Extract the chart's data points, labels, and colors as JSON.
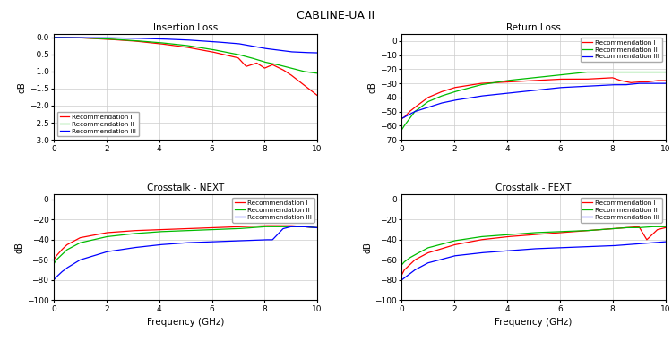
{
  "title": "CABLINE-UA II",
  "freq_max": 10,
  "legend_labels": [
    "Recommendation I",
    "Recommendation II",
    "Recommendation III"
  ],
  "colors": [
    "#ff0000",
    "#00bb00",
    "#0000ff"
  ],
  "subplot_titles": [
    "Insertion Loss",
    "Return Loss",
    "Crosstalk - NEXT",
    "Crosstalk - FEXT"
  ],
  "xlabel": "Frequency (GHz)",
  "ylabel": "dB",
  "insertion_loss": {
    "ylim": [
      -3.0,
      0.1
    ],
    "yticks": [
      0.0,
      -0.5,
      -1.0,
      -1.5,
      -2.0,
      -2.5,
      -3.0
    ],
    "legend_loc": "lower left",
    "rec1": {
      "x": [
        0,
        0.5,
        1,
        2,
        3,
        4,
        5,
        6,
        7,
        7.3,
        7.7,
        8.0,
        8.3,
        8.7,
        9.0,
        9.5,
        10
      ],
      "y": [
        0,
        -0.005,
        -0.01,
        -0.05,
        -0.1,
        -0.18,
        -0.28,
        -0.42,
        -0.6,
        -0.85,
        -0.75,
        -0.9,
        -0.8,
        -0.95,
        -1.1,
        -1.4,
        -1.7
      ]
    },
    "rec2": {
      "x": [
        0,
        0.5,
        1,
        2,
        3,
        4,
        5,
        6,
        7,
        7.5,
        8,
        8.5,
        9,
        9.5,
        10
      ],
      "y": [
        0,
        -0.005,
        -0.01,
        -0.04,
        -0.09,
        -0.15,
        -0.23,
        -0.35,
        -0.5,
        -0.6,
        -0.72,
        -0.8,
        -0.9,
        -1.0,
        -1.05
      ]
    },
    "rec3": {
      "x": [
        0,
        0.5,
        1,
        2,
        3,
        4,
        5,
        6,
        7,
        7.5,
        8,
        8.5,
        9,
        9.5,
        10
      ],
      "y": [
        0,
        -0.002,
        -0.005,
        -0.01,
        -0.02,
        -0.04,
        -0.07,
        -0.12,
        -0.18,
        -0.25,
        -0.32,
        -0.37,
        -0.42,
        -0.44,
        -0.45
      ]
    }
  },
  "return_loss": {
    "ylim": [
      -70,
      5
    ],
    "yticks": [
      0,
      -10,
      -20,
      -30,
      -40,
      -50,
      -60,
      -70
    ],
    "legend_loc": "upper right",
    "rec1": {
      "x": [
        0,
        0.1,
        0.3,
        0.5,
        1,
        1.5,
        2,
        3,
        4,
        5,
        6,
        7,
        8,
        8.3,
        8.7,
        9.0,
        9.3,
        9.7,
        10
      ],
      "y": [
        -55,
        -54,
        -50,
        -47,
        -40,
        -36,
        -33,
        -30,
        -29,
        -28,
        -27,
        -27,
        -26,
        -28,
        -29.5,
        -29,
        -29,
        -28,
        -28
      ]
    },
    "rec2": {
      "x": [
        0,
        0.1,
        0.3,
        0.5,
        1,
        1.5,
        2,
        3,
        4,
        5,
        6,
        7,
        8,
        8.5,
        9,
        9.5,
        10
      ],
      "y": [
        -63,
        -60,
        -55,
        -50,
        -43,
        -39,
        -36,
        -31,
        -28,
        -26,
        -24,
        -22,
        -22,
        -22,
        -22,
        -22,
        -22
      ]
    },
    "rec3": {
      "x": [
        0,
        0.1,
        0.3,
        0.5,
        1,
        1.5,
        2,
        3,
        4,
        5,
        6,
        7,
        8,
        8.5,
        9,
        9.5,
        10
      ],
      "y": [
        -55,
        -54,
        -52,
        -50,
        -47,
        -44,
        -42,
        -39,
        -37,
        -35,
        -33,
        -32,
        -31,
        -31,
        -30,
        -30,
        -30
      ]
    }
  },
  "next": {
    "ylim": [
      -100,
      5
    ],
    "yticks": [
      0,
      -20,
      -40,
      -60,
      -80,
      -100
    ],
    "legend_loc": "upper right",
    "rec1": {
      "x": [
        0,
        0.1,
        0.3,
        0.5,
        1,
        2,
        3,
        4,
        5,
        6,
        7,
        8,
        8.5,
        9,
        9.5,
        10
      ],
      "y": [
        -60,
        -56,
        -50,
        -45,
        -38,
        -33,
        -31,
        -30,
        -29,
        -28,
        -27,
        -26,
        -26,
        -26,
        -27,
        -28
      ]
    },
    "rec2": {
      "x": [
        0,
        0.1,
        0.3,
        0.5,
        1,
        2,
        3,
        4,
        5,
        6,
        7,
        8,
        8.5,
        9,
        9.5,
        10
      ],
      "y": [
        -64,
        -60,
        -55,
        -50,
        -43,
        -37,
        -34,
        -32,
        -31,
        -30,
        -29,
        -27,
        -27,
        -27,
        -27,
        -28
      ]
    },
    "rec3": {
      "x": [
        0,
        0.1,
        0.3,
        0.5,
        1,
        2,
        3,
        4,
        5,
        6,
        7,
        8,
        8.3,
        8.7,
        9.0,
        9.5,
        10
      ],
      "y": [
        -80,
        -77,
        -72,
        -68,
        -60,
        -52,
        -48,
        -45,
        -43,
        -42,
        -41,
        -40,
        -40,
        -29,
        -27,
        -27,
        -28
      ]
    }
  },
  "fext": {
    "ylim": [
      -100,
      5
    ],
    "yticks": [
      0,
      -20,
      -40,
      -60,
      -80,
      -100
    ],
    "legend_loc": "upper right",
    "rec1": {
      "x": [
        0,
        0.1,
        0.3,
        0.5,
        1,
        2,
        3,
        4,
        5,
        6,
        7,
        8,
        8.5,
        9.0,
        9.3,
        9.7,
        10
      ],
      "y": [
        -75,
        -70,
        -65,
        -60,
        -53,
        -45,
        -40,
        -37,
        -35,
        -33,
        -31,
        -29,
        -28,
        -27,
        -40,
        -30,
        -28
      ]
    },
    "rec2": {
      "x": [
        0,
        0.1,
        0.3,
        0.5,
        1,
        2,
        3,
        4,
        5,
        6,
        7,
        8,
        8.5,
        9,
        9.5,
        10
      ],
      "y": [
        -65,
        -62,
        -58,
        -55,
        -48,
        -41,
        -37,
        -35,
        -33,
        -32,
        -31,
        -29,
        -28,
        -28,
        -27,
        -27
      ]
    },
    "rec3": {
      "x": [
        0,
        0.1,
        0.3,
        0.5,
        1,
        2,
        3,
        4,
        5,
        6,
        7,
        8,
        8.5,
        9,
        9.5,
        10
      ],
      "y": [
        -80,
        -78,
        -74,
        -70,
        -63,
        -56,
        -53,
        -51,
        -49,
        -48,
        -47,
        -46,
        -45,
        -44,
        -43,
        -42
      ]
    }
  }
}
